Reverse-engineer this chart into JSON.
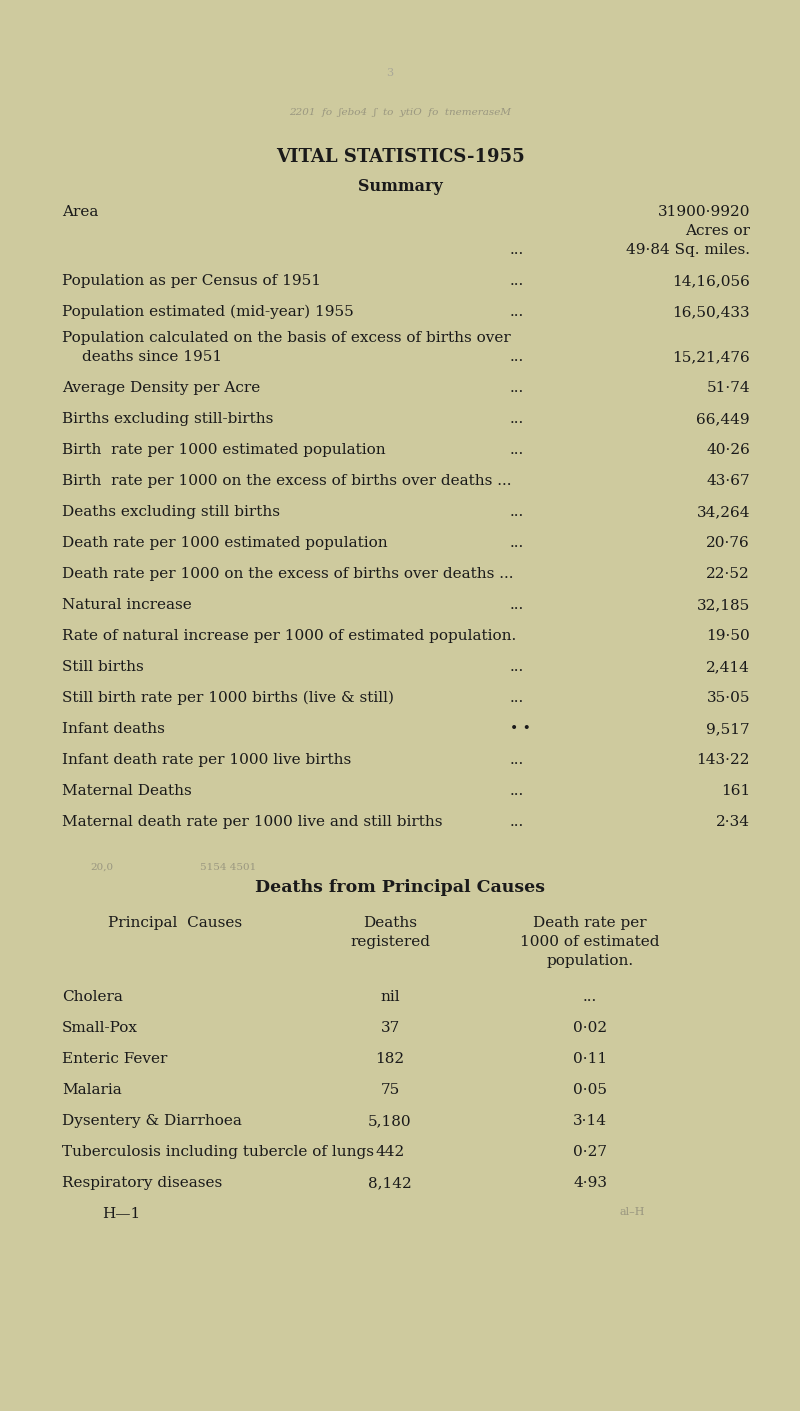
{
  "title": "VITAL STATISTICS-1955",
  "subtitle": "Summary",
  "background_color": "#ceca9e",
  "text_color": "#1a1a1a",
  "deaths_title": "Deaths from Principal Causes",
  "deaths_rows": [
    {
      "cause": "Cholera",
      "deaths": "nil",
      "rate": "..."
    },
    {
      "cause": "Small-Pox",
      "deaths": "37",
      "rate": "0·02"
    },
    {
      "cause": "Enteric Fever",
      "deaths": "182",
      "rate": "0·11"
    },
    {
      "cause": "Malaria",
      "deaths": "75",
      "rate": "0·05"
    },
    {
      "cause": "Dysentery & Diarrhoea",
      "deaths": "5,180",
      "rate": "3·14"
    },
    {
      "cause": "Tuberculosis including tubercle of lungs",
      "deaths": "442",
      "rate": "0·27"
    },
    {
      "cause": "Respiratory diseases",
      "deaths": "8,142",
      "rate": "4·93"
    }
  ],
  "footer": "H—1",
  "bleed_text1": "2201  fo ʃebo4  ʃ  to  ytiO  fo  tnemeraseM",
  "bleed_text2": "3"
}
